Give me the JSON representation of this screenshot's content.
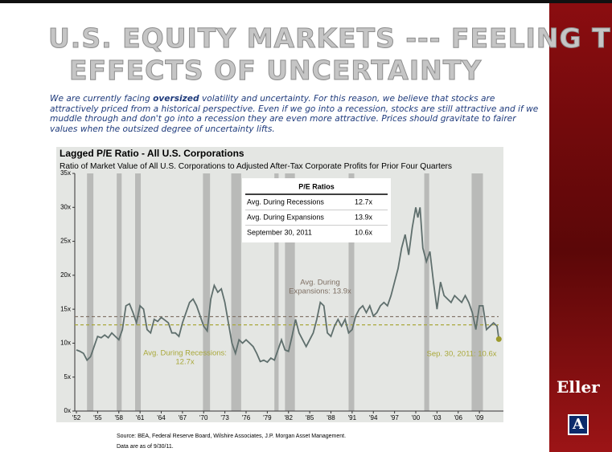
{
  "slide": {
    "title_line1": "U.S. EQUITY MARKETS  ---  FEELING THE",
    "title_line2": "EFFECTS OF UNCERTAINTY",
    "intro_before": "We are currently facing ",
    "intro_bold": "oversized",
    "intro_after": " volatility and uncertainty.  For this reason, we believe that stocks are attractively priced from a historical perspective.   Even if we go into a recession, stocks are still attractive and if we muddle through and don't go into a recession they are even more attractive.  Prices should gravitate to fairer values when the outsized degree of uncertainty lifts.",
    "source": "Source: BEA, Federal Reserve Board, Wilshire Associates, J.P. Morgan Asset Management.",
    "data_note": "Data are as of 9/30/11.",
    "logo_text": "Eller",
    "logo_mark": "A"
  },
  "chart_data": {
    "type": "line",
    "title": "Lagged P/E Ratio - All U.S. Corporations",
    "subtitle": "Ratio of Market Value of All U.S. Corporations to Adjusted After-Tax Corporate Profits for Prior Four Quarters",
    "xlim": [
      1951.77,
      2012.4
    ],
    "ylim": [
      0,
      35
    ],
    "xticks": [
      {
        "value": 1952,
        "label": "'52"
      },
      {
        "value": 1955,
        "label": "'55"
      },
      {
        "value": 1958,
        "label": "'58"
      },
      {
        "value": 1961,
        "label": "'61"
      },
      {
        "value": 1964,
        "label": "'64"
      },
      {
        "value": 1967,
        "label": "'67"
      },
      {
        "value": 1970,
        "label": "'70"
      },
      {
        "value": 1973,
        "label": "'73"
      },
      {
        "value": 1976,
        "label": "'76"
      },
      {
        "value": 1979,
        "label": "'79"
      },
      {
        "value": 1982,
        "label": "'82"
      },
      {
        "value": 1985,
        "label": "'85"
      },
      {
        "value": 1988,
        "label": "'88"
      },
      {
        "value": 1991,
        "label": "'91"
      },
      {
        "value": 1994,
        "label": "'94"
      },
      {
        "value": 1997,
        "label": "'97"
      },
      {
        "value": 2000,
        "label": "'00"
      },
      {
        "value": 2003,
        "label": "'03"
      },
      {
        "value": 2006,
        "label": "'06"
      },
      {
        "value": 2009,
        "label": "'09"
      }
    ],
    "yticks": [
      {
        "value": 0,
        "label": "0x"
      },
      {
        "value": 5,
        "label": "5x"
      },
      {
        "value": 10,
        "label": "10x"
      },
      {
        "value": 15,
        "label": "15x"
      },
      {
        "value": 20,
        "label": "20x"
      },
      {
        "value": 25,
        "label": "25x"
      },
      {
        "value": 30,
        "label": "30x"
      },
      {
        "value": 35,
        "label": "35x"
      }
    ],
    "recession_color": "#b9bab8",
    "recessions": [
      [
        1953.5,
        1954.4
      ],
      [
        1957.7,
        1958.4
      ],
      [
        1960.3,
        1961.1
      ],
      [
        1969.9,
        1970.9
      ],
      [
        1973.9,
        1975.3
      ],
      [
        1980.0,
        1980.6
      ],
      [
        1981.5,
        1982.9
      ],
      [
        1990.5,
        1991.3
      ],
      [
        2001.2,
        2001.9
      ],
      [
        2007.9,
        2009.5
      ]
    ],
    "series": [
      {
        "name": "Lagged P/E Ratio",
        "color": "#5f6f6d",
        "x": [
          1952,
          1952.5,
          1953,
          1953.5,
          1954,
          1954.5,
          1955,
          1955.5,
          1956,
          1956.5,
          1957,
          1957.5,
          1958,
          1958.5,
          1959,
          1959.5,
          1960,
          1960.5,
          1961,
          1961.5,
          1962,
          1962.5,
          1963,
          1963.5,
          1964,
          1964.5,
          1965,
          1965.5,
          1966,
          1966.5,
          1967,
          1967.5,
          1968,
          1968.5,
          1969,
          1969.5,
          1970,
          1970.5,
          1971,
          1971.5,
          1972,
          1972.5,
          1973,
          1973.5,
          1974,
          1974.5,
          1975,
          1975.5,
          1976,
          1976.5,
          1977,
          1977.5,
          1978,
          1978.5,
          1979,
          1979.5,
          1980,
          1980.5,
          1981,
          1981.5,
          1982,
          1982.5,
          1983,
          1983.5,
          1984,
          1984.5,
          1985,
          1985.5,
          1986,
          1986.5,
          1987,
          1987.5,
          1988,
          1988.5,
          1989,
          1989.5,
          1990,
          1990.5,
          1991,
          1991.5,
          1992,
          1992.5,
          1993,
          1993.5,
          1994,
          1994.5,
          1995,
          1995.5,
          1996,
          1996.5,
          1997,
          1997.5,
          1998,
          1998.5,
          1999,
          1999.5,
          2000,
          2000.3,
          2000.6,
          2001,
          2001.5,
          2002,
          2002.5,
          2003,
          2003.5,
          2004,
          2004.5,
          2005,
          2005.5,
          2006,
          2006.5,
          2007,
          2007.5,
          2008,
          2008.5,
          2009,
          2009.5,
          2010,
          2010.5,
          2011,
          2011.5,
          2011.75
        ],
        "values": [
          9,
          8.8,
          8.5,
          7.5,
          8,
          9.5,
          11,
          10.8,
          11.2,
          10.8,
          11.5,
          11,
          10.5,
          12,
          15.5,
          15.8,
          14.5,
          13,
          15.5,
          15,
          12,
          11.5,
          13.5,
          13.2,
          13.8,
          13.4,
          13,
          11.5,
          11.5,
          11,
          13,
          14.5,
          16,
          16.5,
          15.5,
          14,
          12.5,
          11.8,
          16.5,
          18.5,
          17.5,
          18,
          16,
          13,
          10,
          8.5,
          10.5,
          10,
          10.5,
          10,
          9.5,
          8.5,
          7.3,
          7.5,
          7.2,
          7.8,
          7.5,
          9,
          10.5,
          9,
          8.8,
          11,
          13.5,
          11.5,
          10.5,
          9.5,
          10.5,
          11.5,
          13.5,
          16,
          15.5,
          11.5,
          11,
          12.5,
          13.5,
          12.5,
          13.5,
          11.5,
          12,
          14,
          15,
          15.5,
          14.5,
          15.5,
          14,
          14.5,
          15.5,
          16,
          15.5,
          17,
          19,
          21,
          24,
          26,
          23,
          27,
          30,
          28.5,
          30,
          24,
          22,
          23.5,
          19,
          15,
          19,
          17,
          16.5,
          16,
          17,
          16.5,
          16,
          17,
          16,
          14.5,
          12,
          15.5,
          15.5,
          12,
          12.5,
          13,
          12.5,
          10.6
        ]
      }
    ],
    "last_point_color": "#9c9a2c",
    "reference_lines": [
      {
        "value": 13.9,
        "color": "#7d6e62"
      },
      {
        "value": 12.7,
        "color": "#a9a83a"
      }
    ],
    "annotations": {
      "expansions": [
        "Avg. During",
        "Expansions: 13.9x"
      ],
      "recessions": [
        "Avg. During Recessions:",
        "12.7x"
      ],
      "latest": "Sep. 30, 2011: 10.6x"
    },
    "table": {
      "header": "P/E Ratios",
      "rows": [
        [
          "Avg. During Recessions",
          "12.7x"
        ],
        [
          "Avg. During Expansions",
          "13.9x"
        ],
        [
          "September 30, 2011",
          "10.6x"
        ]
      ]
    }
  }
}
